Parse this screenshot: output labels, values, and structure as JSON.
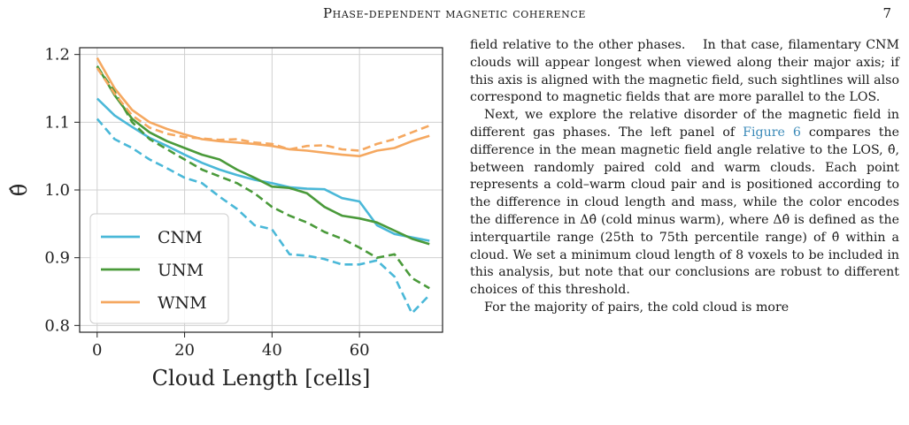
{
  "header": {
    "title": "Phase-dependent magnetic coherence",
    "page_number": "7"
  },
  "figure": {
    "chart_data": {
      "type": "line",
      "xlabel": "Cloud Length [cells]",
      "ylabel": "θ̂",
      "xlim": [
        -4,
        79
      ],
      "ylim": [
        0.79,
        1.21
      ],
      "xticks": [
        0,
        20,
        40,
        60
      ],
      "yticks": [
        0.8,
        0.9,
        1.0,
        1.1,
        1.2
      ],
      "ytick_labels": [
        "0.8",
        "0.9",
        "1.0",
        "1.1",
        "1.2"
      ],
      "grid": true,
      "legend_position": "lower-left",
      "x": [
        0,
        4,
        8,
        12,
        16,
        20,
        24,
        28,
        32,
        36,
        40,
        44,
        48,
        52,
        56,
        60,
        64,
        68,
        72,
        76
      ],
      "series": [
        {
          "name": "CNM",
          "style": "solid",
          "color": "#4ab8d8",
          "values": [
            1.135,
            1.11,
            1.093,
            1.077,
            1.065,
            1.052,
            1.04,
            1.03,
            1.022,
            1.015,
            1.01,
            1.004,
            1.002,
            1.001,
            0.988,
            0.983,
            0.948,
            0.935,
            0.93,
            0.925
          ]
        },
        {
          "name": "UNM",
          "style": "solid",
          "color": "#4a9a3a",
          "values": [
            1.183,
            1.14,
            1.105,
            1.085,
            1.072,
            1.062,
            1.052,
            1.045,
            1.03,
            1.018,
            1.005,
            1.003,
            0.995,
            0.975,
            0.962,
            0.958,
            0.952,
            0.94,
            0.928,
            0.92
          ]
        },
        {
          "name": "WNM",
          "style": "solid",
          "color": "#f5a860",
          "values": [
            1.195,
            1.15,
            1.118,
            1.1,
            1.09,
            1.082,
            1.075,
            1.072,
            1.07,
            1.068,
            1.065,
            1.06,
            1.058,
            1.055,
            1.052,
            1.05,
            1.058,
            1.062,
            1.072,
            1.08
          ]
        },
        {
          "style": "dashed",
          "color": "#4ab8d8",
          "values": [
            1.105,
            1.075,
            1.062,
            1.045,
            1.032,
            1.018,
            1.01,
            0.99,
            0.972,
            0.948,
            0.942,
            0.905,
            0.903,
            0.898,
            0.89,
            0.89,
            0.896,
            0.872,
            0.818,
            0.845
          ]
        },
        {
          "style": "dashed",
          "color": "#4a9a3a",
          "values": [
            1.182,
            1.145,
            1.1,
            1.075,
            1.06,
            1.045,
            1.03,
            1.02,
            1.01,
            0.995,
            0.975,
            0.962,
            0.952,
            0.938,
            0.928,
            0.915,
            0.9,
            0.905,
            0.87,
            0.855
          ]
        },
        {
          "style": "dashed",
          "color": "#f5a860",
          "values": [
            1.18,
            1.142,
            1.11,
            1.092,
            1.083,
            1.078,
            1.076,
            1.074,
            1.075,
            1.07,
            1.068,
            1.06,
            1.065,
            1.066,
            1.06,
            1.058,
            1.068,
            1.075,
            1.085,
            1.095
          ]
        }
      ]
    }
  },
  "text": {
    "p1": "field relative to the other phases.  In that case, filamentary CNM clouds will appear longest when viewed along their major axis; if this axis is aligned with the magnetic field, such sightlines will also correspond to magnetic fields that are more parallel to the LOS.",
    "p2_a": "Next, we explore the relative disorder of the magnetic field in different gas phases. The left panel of ",
    "p2_link": "Figure 6",
    "p2_b": " compares the difference in the mean magnetic field angle relative to the LOS, θ̂, between randomly paired cold and warm clouds. Each point represents a cold–warm cloud pair and is positioned according to the difference in cloud length and mass, while the color encodes the difference in Δθ̂ (cold minus warm), where Δθ̂ is defined as the interquartile range (25th to 75th percentile range) of θ̂ within a cloud. We set a minimum cloud length of 8 voxels to be included in this analysis, but note that our conclusions are robust to different choices of this threshold.",
    "p3": "For the majority of pairs, the cold cloud is more"
  }
}
